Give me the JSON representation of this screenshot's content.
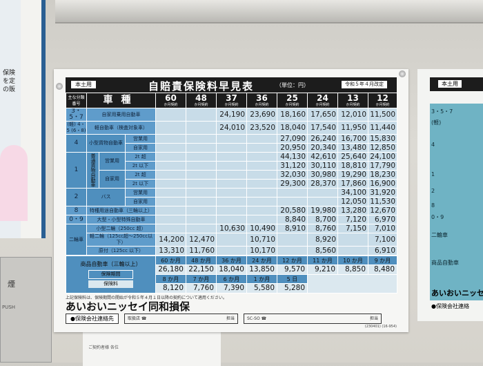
{
  "poster": {
    "tag": "本土用",
    "title": "自賠責保険料早見表",
    "unit": "（単位：円）",
    "revised": "令和５年４月改定",
    "header": {
      "code": "主な分類番号",
      "vehicle": "車種",
      "months_label": "か月契約",
      "columns": [
        "60",
        "48",
        "37",
        "36",
        "25",
        "24",
        "13",
        "12"
      ]
    },
    "labels": {
      "c357": "3・5・7",
      "passenger": "自家用乗用自動車",
      "kei_code": "(軽) 4・5 (6・8)",
      "kei": "軽自動車（検査対象車）",
      "c4": "4",
      "small_cargo": "小型貨物自動車",
      "commercial": "営業用",
      "private": "自家用",
      "c1": "1",
      "cargo": "普通貨物自動車",
      "over2t": "2t 超",
      "under2t": "2t 以下",
      "c2": "2",
      "bus": "バス",
      "c8": "8",
      "special_purpose": "特種用途自動車（三輪以上）",
      "c09": "0・9",
      "special": "大型・小型特殊自動車",
      "twowheel": "二輪車",
      "small_2w": "小型二輪（250cc 超）",
      "light_2w": "軽二輪（125cc超～250cc以下）",
      "moped": "原付（125cc 以下）"
    },
    "rows": [
      [
        "",
        "",
        "24,190",
        "23,690",
        "18,160",
        "17,650",
        "12,010",
        "11,500"
      ],
      [
        "",
        "",
        "24,010",
        "23,520",
        "18,040",
        "17,540",
        "11,950",
        "11,440"
      ],
      [
        "",
        "",
        "",
        "",
        "27,090",
        "26,240",
        "16,700",
        "15,830"
      ],
      [
        "",
        "",
        "",
        "",
        "20,950",
        "20,340",
        "13,480",
        "12,850"
      ],
      [
        "",
        "",
        "",
        "",
        "44,130",
        "42,610",
        "25,640",
        "24,100"
      ],
      [
        "",
        "",
        "",
        "",
        "31,120",
        "30,110",
        "18,810",
        "17,790"
      ],
      [
        "",
        "",
        "",
        "",
        "32,030",
        "30,980",
        "19,290",
        "18,230"
      ],
      [
        "",
        "",
        "",
        "",
        "29,300",
        "28,370",
        "17,860",
        "16,900"
      ],
      [
        "",
        "",
        "",
        "",
        "",
        "",
        "34,100",
        "31,920"
      ],
      [
        "",
        "",
        "",
        "",
        "",
        "",
        "12,050",
        "11,530"
      ],
      [
        "",
        "",
        "",
        "",
        "20,580",
        "19,980",
        "13,280",
        "12,670"
      ],
      [
        "",
        "",
        "",
        "",
        "8,840",
        "8,700",
        "7,120",
        "6,970"
      ],
      [
        "",
        "",
        "10,630",
        "10,490",
        "8,910",
        "8,760",
        "7,150",
        "7,010"
      ],
      [
        "14,200",
        "12,470",
        "",
        "10,710",
        "",
        "8,920",
        "",
        "7,100"
      ],
      [
        "13,310",
        "11,760",
        "",
        "10,170",
        "",
        "8,560",
        "",
        "6,910"
      ]
    ],
    "dealer": {
      "label": "商品自動車（三輪以上）",
      "period_label": "保険期間",
      "premium_label": "保険料",
      "periods1": [
        "60 か月",
        "48 か月",
        "36 か月",
        "24 か月",
        "12 か月",
        "11 か月",
        "10 か月",
        "9 か月"
      ],
      "premiums1": [
        "26,180",
        "22,150",
        "18,040",
        "13,850",
        "9,570",
        "9,210",
        "8,850",
        "8,480"
      ],
      "periods2": [
        "8 か月",
        "7 か月",
        "6 か月",
        "1 か月",
        "5 日"
      ],
      "premiums2": [
        "8,120",
        "7,760",
        "7,390",
        "5,580",
        "5,280"
      ]
    },
    "note": "上記保険料は、保険期間の開始が令和５年４月１日以降の契約について適用ください。",
    "company": "あいおいニッセイ同和損保",
    "contact_label": "●保険会社連絡先",
    "agent_label": "取扱店 ☎",
    "staff_label": "担当",
    "sc_label": "SC-SO ☎",
    "staff_label2": "担当",
    "code": "(230401) (16-954)"
  },
  "right_poster": {
    "tag": "本土用",
    "rows": [
      "3・5・7",
      "(軽)",
      "4",
      "1",
      "2",
      "8",
      "0・9",
      "二輪車"
    ],
    "dealer": "商品自動車",
    "company": "あいおいニッセ",
    "contact": "●保険会社連絡"
  },
  "left_poster": {
    "text": "保険を定の販"
  },
  "wall_box": {
    "label": "煙",
    "push": "PUSH"
  },
  "paper": {
    "text": "ご契約者様 各位"
  }
}
